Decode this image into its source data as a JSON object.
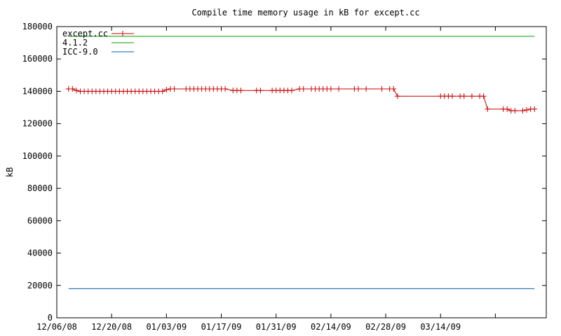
{
  "chart_data": {
    "type": "line",
    "title": "Compile time memory usage in kB for except.cc",
    "xlabel": "",
    "ylabel": "kB",
    "ylim": [
      0,
      180000
    ],
    "yticks": [
      0,
      20000,
      40000,
      60000,
      80000,
      100000,
      120000,
      140000,
      160000,
      180000
    ],
    "xlim": [
      "2008-12-06",
      "2009-04-10"
    ],
    "xticks": [
      "12/06/08",
      "12/20/08",
      "01/03/09",
      "01/17/09",
      "01/31/09",
      "02/14/09",
      "02/28/09",
      "03/14/09"
    ],
    "grid": false,
    "legend": "top-left",
    "series": [
      {
        "name": "except.cc",
        "color": "#cc0000",
        "markers": true,
        "x": [
          "2008-12-09",
          "2008-12-10",
          "2008-12-11",
          "2008-12-12",
          "2008-12-13",
          "2008-12-14",
          "2008-12-15",
          "2008-12-16",
          "2008-12-17",
          "2008-12-18",
          "2008-12-19",
          "2008-12-20",
          "2008-12-21",
          "2008-12-22",
          "2008-12-23",
          "2008-12-24",
          "2008-12-25",
          "2008-12-26",
          "2008-12-27",
          "2008-12-28",
          "2008-12-29",
          "2008-12-30",
          "2008-12-31",
          "2009-01-01",
          "2009-01-02",
          "2009-01-03",
          "2009-01-04",
          "2009-01-05",
          "2009-01-08",
          "2009-01-09",
          "2009-01-10",
          "2009-01-11",
          "2009-01-12",
          "2009-01-13",
          "2009-01-14",
          "2009-01-15",
          "2009-01-16",
          "2009-01-17",
          "2009-01-18",
          "2009-01-20",
          "2009-01-21",
          "2009-01-22",
          "2009-01-26",
          "2009-01-27",
          "2009-01-30",
          "2009-01-31",
          "2009-02-01",
          "2009-02-02",
          "2009-02-03",
          "2009-02-04",
          "2009-02-06",
          "2009-02-07",
          "2009-02-09",
          "2009-02-10",
          "2009-02-11",
          "2009-02-12",
          "2009-02-13",
          "2009-02-14",
          "2009-02-16",
          "2009-02-20",
          "2009-02-21",
          "2009-02-23",
          "2009-02-27",
          "2009-03-01",
          "2009-03-02",
          "2009-03-03",
          "2009-03-14",
          "2009-03-15",
          "2009-03-16",
          "2009-03-17",
          "2009-03-19",
          "2009-03-20",
          "2009-03-22",
          "2009-03-24",
          "2009-03-25",
          "2009-03-26",
          "2009-03-30",
          "2009-03-31",
          "2009-04-01",
          "2009-04-02",
          "2009-04-04",
          "2009-04-05",
          "2009-04-06",
          "2009-04-07"
        ],
        "values": [
          141500,
          141500,
          140500,
          140000,
          140000,
          140000,
          140000,
          140000,
          140000,
          140000,
          140000,
          140000,
          140000,
          140000,
          140000,
          140000,
          140000,
          140000,
          140000,
          140000,
          140000,
          140000,
          140000,
          140000,
          140000,
          141000,
          141500,
          141500,
          141500,
          141500,
          141500,
          141500,
          141500,
          141500,
          141500,
          141500,
          141500,
          141500,
          141500,
          140500,
          140500,
          140500,
          140500,
          140500,
          140500,
          140500,
          140500,
          140500,
          140500,
          140500,
          141500,
          141500,
          141500,
          141500,
          141500,
          141500,
          141500,
          141500,
          141500,
          141500,
          141500,
          141500,
          141500,
          141500,
          141500,
          137000,
          137000,
          137000,
          137000,
          137000,
          137000,
          137000,
          137000,
          137000,
          137000,
          129000,
          129000,
          129000,
          128000,
          128000,
          128000,
          128500,
          129000,
          129000
        ]
      },
      {
        "name": "4.1.2",
        "color": "#00a000",
        "markers": false,
        "x": [
          "2008-12-09",
          "2009-04-07"
        ],
        "values": [
          174000,
          174000
        ]
      },
      {
        "name": "ICC-9.0",
        "color": "#0060ad",
        "markers": false,
        "x": [
          "2008-12-09",
          "2009-04-07"
        ],
        "values": [
          18000,
          18000
        ]
      }
    ]
  }
}
